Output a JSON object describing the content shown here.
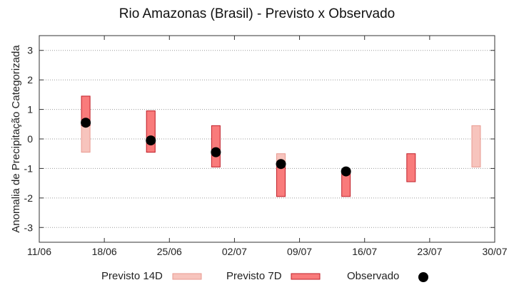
{
  "chart_data": {
    "type": "range-bar",
    "title": "Rio Amazonas (Brasil) - Previsto x Observado",
    "xlabel": "",
    "ylabel": "Anomalia de Precipitação Categorizada",
    "ylim": [
      -3.5,
      3.5
    ],
    "yticks": [
      -3,
      -2,
      -1,
      0,
      1,
      2,
      3
    ],
    "xticks": [
      "11/06",
      "18/06",
      "25/06",
      "02/07",
      "09/07",
      "16/07",
      "23/07",
      "30/07"
    ],
    "grid": true,
    "legend_position": "bottom",
    "series": [
      {
        "name": "Previsto 14D",
        "color": "#f7c4bd",
        "stroke": "#e89a90",
        "ranges": [
          {
            "x": "16/06",
            "low": -0.45,
            "high": 1.45
          },
          {
            "x": "23/06",
            "low": -0.45,
            "high": 0.95
          },
          {
            "x": "07/07",
            "low": -1.95,
            "high": -0.5
          },
          {
            "x": "28/07",
            "low": -0.95,
            "high": 0.45
          }
        ]
      },
      {
        "name": "Previsto 7D",
        "color": "#f97b7b",
        "stroke": "#c0202a",
        "ranges": [
          {
            "x": "16/06",
            "low": 0.45,
            "high": 1.45
          },
          {
            "x": "23/06",
            "low": -0.45,
            "high": 0.95
          },
          {
            "x": "30/06",
            "low": -0.95,
            "high": 0.45
          },
          {
            "x": "07/07",
            "low": -1.95,
            "high": -0.95
          },
          {
            "x": "14/07",
            "low": -1.95,
            "high": -1.1
          },
          {
            "x": "21/07",
            "low": -1.45,
            "high": -0.5
          }
        ]
      },
      {
        "name": "Observado",
        "color": "#000000",
        "points": [
          {
            "x": "16/06",
            "y": 0.55
          },
          {
            "x": "23/06",
            "y": -0.05
          },
          {
            "x": "30/06",
            "y": -0.45
          },
          {
            "x": "07/07",
            "y": -0.85
          },
          {
            "x": "14/07",
            "y": -1.1
          }
        ]
      }
    ]
  }
}
